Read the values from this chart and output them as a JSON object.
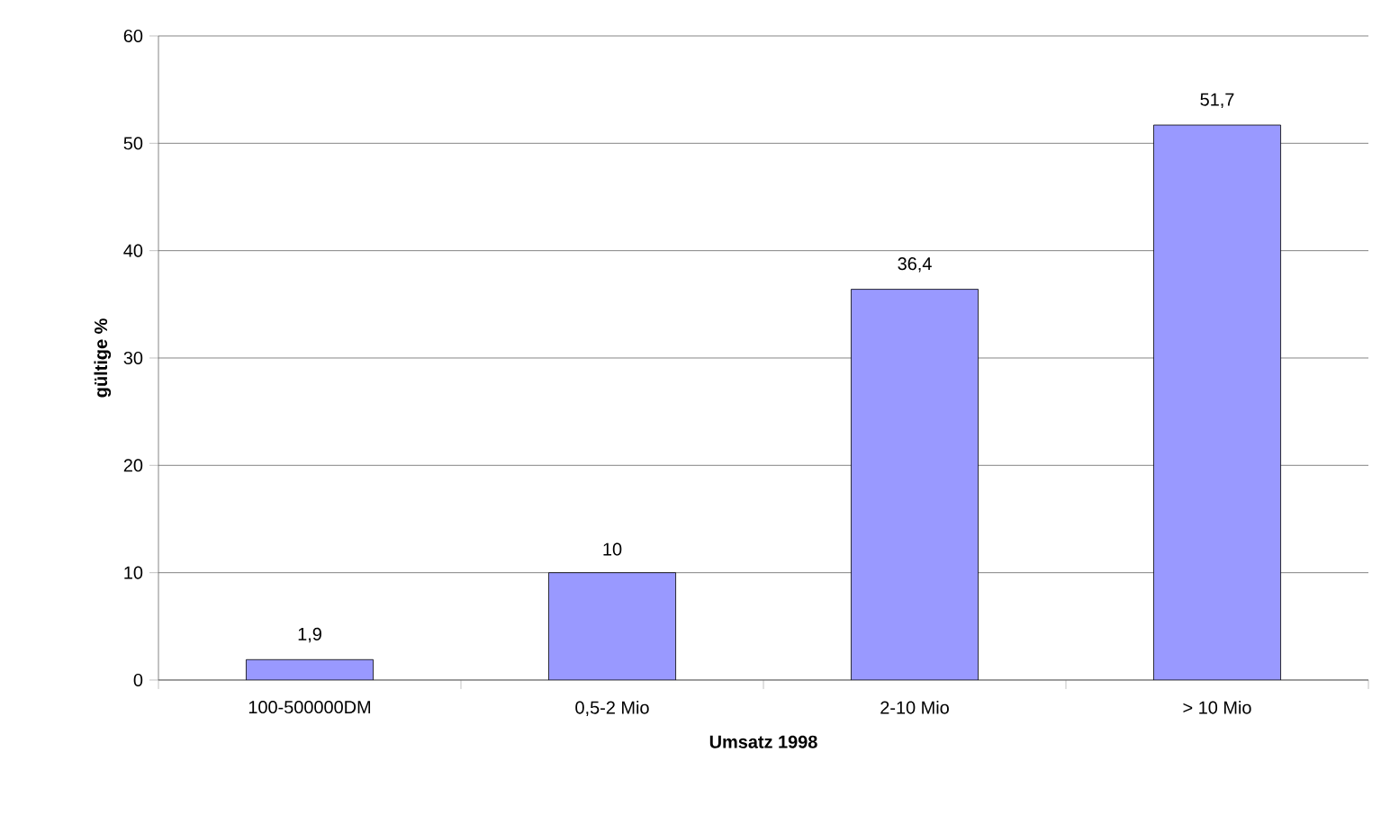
{
  "chart_data": {
    "type": "bar",
    "xlabel": "Umsatz 1998",
    "ylabel": "gültige %",
    "categories": [
      "100-500000DM",
      "0,5-2 Mio",
      "2-10 Mio",
      "> 10 Mio"
    ],
    "values": [
      1.9,
      10,
      36.4,
      51.7
    ],
    "value_labels": [
      "1,9",
      "10",
      "36,4",
      "51,7"
    ],
    "color": "#9999ff",
    "ylim": [
      0,
      60
    ],
    "yticks": [
      0,
      10,
      20,
      30,
      40,
      50,
      60
    ],
    "grid": "y"
  }
}
